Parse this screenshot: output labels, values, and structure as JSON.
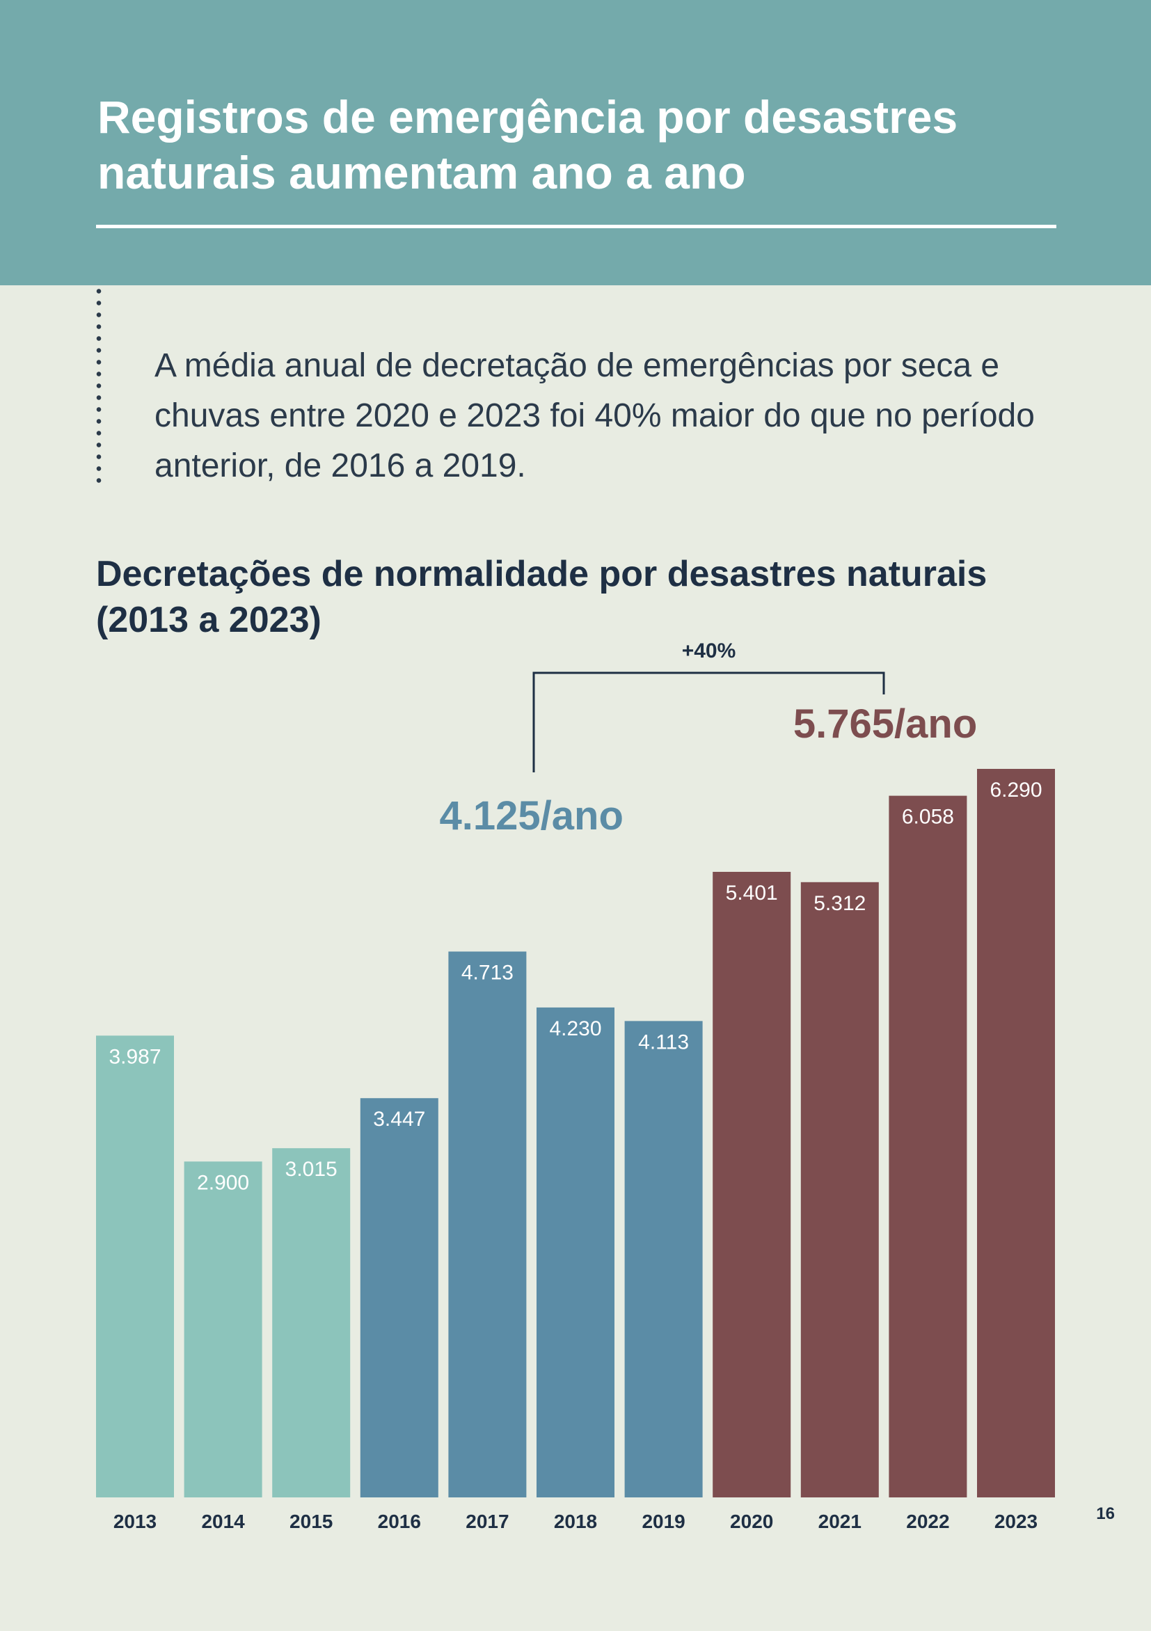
{
  "header": {
    "title": "Registros de emergência por desastres naturais aumentam ano a ano"
  },
  "intro": {
    "text": "A média anual de decretação de emergências por seca e chuvas entre 2020 e 2023 foi 40% maior do que no período anterior, de 2016 a 2019."
  },
  "page_number": "16",
  "chart_data": {
    "type": "bar",
    "title": "Decretações de normalidade por desastres naturais (2013 a 2023)",
    "xlabel": "",
    "ylabel": "",
    "categories": [
      "2013",
      "2014",
      "2015",
      "2016",
      "2017",
      "2018",
      "2019",
      "2020",
      "2021",
      "2022",
      "2023"
    ],
    "values": [
      3987,
      2900,
      3015,
      3447,
      4713,
      4230,
      4113,
      5401,
      5312,
      6058,
      6290
    ],
    "value_labels": [
      "3.987",
      "2.900",
      "3.015",
      "3.447",
      "4.713",
      "4.230",
      "4.113",
      "5.401",
      "5.312",
      "6.058",
      "6.290"
    ],
    "bar_colors": [
      "#8cc4bb",
      "#8cc4bb",
      "#8cc4bb",
      "#5b8ca6",
      "#5b8ca6",
      "#5b8ca6",
      "#5b8ca6",
      "#7d4d4f",
      "#7d4d4f",
      "#7d4d4f",
      "#7d4d4f"
    ],
    "ylim": [
      0,
      6290
    ],
    "grid": false,
    "legend": "none",
    "annotations": {
      "average_2016_2019": {
        "label": "4.125/ano",
        "color": "#5b8ca6"
      },
      "average_2020_2023": {
        "label": "5.765/ano",
        "color": "#7d4d4f"
      },
      "increase": {
        "label": "+40%",
        "color": "#1e2f44"
      }
    }
  }
}
